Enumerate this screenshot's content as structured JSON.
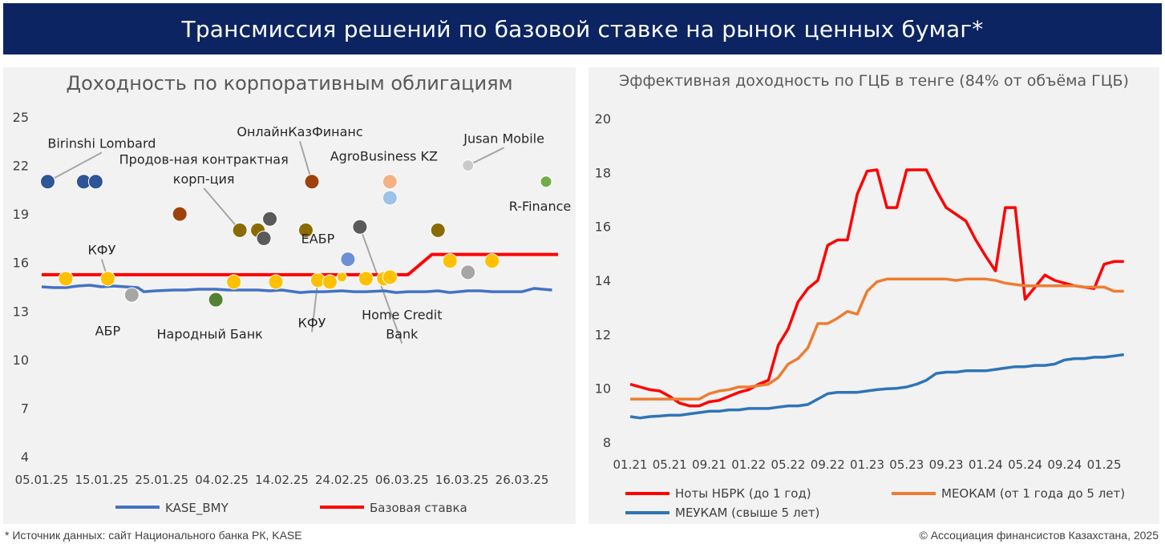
{
  "banner": {
    "title": "Трансмиссия решений по базовой ставке на рынок ценных бумаг*"
  },
  "footer": {
    "source": "* Источник данных: сайт Национального банка РК, KASE",
    "copyright": "© Ассоциация финансистов Казахстана, 2025"
  },
  "chart_data": [
    {
      "type": "scatter",
      "title": "Доходность по корпоративным облигациям",
      "ylim": [
        4,
        25
      ],
      "yticks": [
        4,
        7,
        10,
        13,
        16,
        19,
        22,
        25
      ],
      "xlim": [
        "2025-01-05",
        "2025-04-01"
      ],
      "xticks": [
        "05.01.25",
        "15.01.25",
        "25.01.25",
        "04.02.25",
        "14.02.25",
        "24.02.25",
        "06.03.25",
        "16.03.25",
        "26.03.25"
      ],
      "xtick_dates": [
        "2025-01-05",
        "2025-01-15",
        "2025-01-25",
        "2025-02-04",
        "2025-02-14",
        "2025-02-24",
        "2025-03-06",
        "2025-03-16",
        "2025-03-26"
      ],
      "grid": false,
      "legend_position": "bottom",
      "series": [
        {
          "name": "KASE_BMY",
          "kind": "line",
          "color": "#4472c4",
          "x": [
            "2025-01-05",
            "2025-01-07",
            "2025-01-09",
            "2025-01-11",
            "2025-01-13",
            "2025-01-15",
            "2025-01-17",
            "2025-01-19",
            "2025-01-21",
            "2025-01-22",
            "2025-01-24",
            "2025-01-27",
            "2025-01-29",
            "2025-01-31",
            "2025-02-03",
            "2025-02-05",
            "2025-02-07",
            "2025-02-10",
            "2025-02-12",
            "2025-02-14",
            "2025-02-17",
            "2025-02-19",
            "2025-02-21",
            "2025-02-24",
            "2025-02-26",
            "2025-02-28",
            "2025-03-03",
            "2025-03-05",
            "2025-03-07",
            "2025-03-10",
            "2025-03-12",
            "2025-03-14",
            "2025-03-17",
            "2025-03-19",
            "2025-03-21",
            "2025-03-24",
            "2025-03-26",
            "2025-03-28",
            "2025-03-31"
          ],
          "y": [
            14.5,
            14.45,
            14.45,
            14.55,
            14.6,
            14.5,
            14.55,
            14.5,
            14.45,
            14.2,
            14.25,
            14.3,
            14.3,
            14.35,
            14.35,
            14.3,
            14.3,
            14.3,
            14.25,
            14.3,
            14.15,
            14.2,
            14.2,
            14.25,
            14.2,
            14.2,
            14.25,
            14.15,
            14.2,
            14.2,
            14.25,
            14.15,
            14.25,
            14.25,
            14.2,
            14.2,
            14.2,
            14.4,
            14.3
          ]
        },
        {
          "name": "Базовая ставка",
          "kind": "step",
          "color": "#ff0000",
          "x": [
            "2025-01-05",
            "2025-03-07",
            "2025-03-11",
            "2025-04-01"
          ],
          "y": [
            15.25,
            15.25,
            16.5,
            16.5
          ]
        },
        {
          "name": "",
          "kind": "points",
          "points": [
            {
              "x": "2025-01-06",
              "y": 21.0,
              "color": "#2e5597",
              "r": 9
            },
            {
              "x": "2025-01-12",
              "y": 21.0,
              "color": "#2e5597",
              "r": 9
            },
            {
              "x": "2025-01-14",
              "y": 21.0,
              "color": "#2e5597",
              "r": 9
            },
            {
              "x": "2025-01-09",
              "y": 15.0,
              "color": "#ffc000",
              "r": 9
            },
            {
              "x": "2025-01-16",
              "y": 15.0,
              "color": "#ffc000",
              "r": 9
            },
            {
              "x": "2025-01-20",
              "y": 14.0,
              "color": "#a6a6a6",
              "r": 9
            },
            {
              "x": "2025-01-28",
              "y": 19.0,
              "color": "#a0410d",
              "r": 9
            },
            {
              "x": "2025-02-03",
              "y": 13.7,
              "color": "#548235",
              "r": 9
            },
            {
              "x": "2025-02-06",
              "y": 14.8,
              "color": "#ffc000",
              "r": 9
            },
            {
              "x": "2025-02-07",
              "y": 18.0,
              "color": "#8b6b00",
              "r": 9
            },
            {
              "x": "2025-02-10",
              "y": 18.0,
              "color": "#8b6b00",
              "r": 9
            },
            {
              "x": "2025-02-11",
              "y": 17.5,
              "color": "#5a5a5a",
              "r": 9
            },
            {
              "x": "2025-02-12",
              "y": 18.7,
              "color": "#5a5a5a",
              "r": 9
            },
            {
              "x": "2025-02-13",
              "y": 14.8,
              "color": "#ffc000",
              "r": 9
            },
            {
              "x": "2025-02-18",
              "y": 18.0,
              "color": "#8b6b00",
              "r": 9
            },
            {
              "x": "2025-02-19",
              "y": 21.0,
              "color": "#a0410d",
              "r": 9
            },
            {
              "x": "2025-02-20",
              "y": 14.9,
              "color": "#ffc000",
              "r": 9
            },
            {
              "x": "2025-02-22",
              "y": 14.8,
              "color": "#ffc000",
              "r": 9
            },
            {
              "x": "2025-02-24",
              "y": 15.1,
              "color": "#ffc000",
              "r": 6
            },
            {
              "x": "2025-02-25",
              "y": 16.2,
              "color": "#6d8fd6",
              "r": 9
            },
            {
              "x": "2025-02-27",
              "y": 18.2,
              "color": "#5a5a5a",
              "r": 9
            },
            {
              "x": "2025-02-28",
              "y": 15.0,
              "color": "#ffc000",
              "r": 9
            },
            {
              "x": "2025-03-03",
              "y": 15.0,
              "color": "#ffc000",
              "r": 9
            },
            {
              "x": "2025-03-04",
              "y": 15.1,
              "color": "#ffc000",
              "r": 9
            },
            {
              "x": "2025-03-04",
              "y": 21.0,
              "color": "#f4b183",
              "r": 9
            },
            {
              "x": "2025-03-04",
              "y": 20.0,
              "color": "#9dc3e6",
              "r": 9
            },
            {
              "x": "2025-03-12",
              "y": 18.0,
              "color": "#8b6b00",
              "r": 9
            },
            {
              "x": "2025-03-14",
              "y": 16.1,
              "color": "#ffc000",
              "r": 9
            },
            {
              "x": "2025-03-17",
              "y": 15.4,
              "color": "#a6a6a6",
              "r": 9
            },
            {
              "x": "2025-03-17",
              "y": 22.0,
              "color": "#c9c9c9",
              "r": 7
            },
            {
              "x": "2025-03-21",
              "y": 16.1,
              "color": "#ffc000",
              "r": 9
            },
            {
              "x": "2025-03-30",
              "y": 21.0,
              "color": "#70ad47",
              "r": 7
            }
          ]
        }
      ],
      "annotations": [
        {
          "text": "Birinshi Lombard",
          "x": "2025-01-15",
          "y": 23.1,
          "leader_to": {
            "x": "2025-01-06",
            "y": 21.0
          }
        },
        {
          "text": "Продов-ная контрактная",
          "x": "2025-02-01",
          "y": 22.1
        },
        {
          "text": "корп-ция",
          "x": "2025-02-01",
          "y": 20.9,
          "leader_to": {
            "x": "2025-02-07",
            "y": 18.0
          }
        },
        {
          "text": "ОнлайнКазФинанс",
          "x": "2025-02-17",
          "y": 23.8,
          "leader_to": {
            "x": "2025-02-19",
            "y": 21.0
          }
        },
        {
          "text": "AgroBusiness KZ",
          "x": "2025-03-03",
          "y": 22.3
        },
        {
          "text": "Jusan Mobile",
          "x": "2025-03-23",
          "y": 23.4,
          "leader_to": {
            "x": "2025-03-17",
            "y": 22.0
          }
        },
        {
          "text": "R-Finance",
          "x": "2025-03-29",
          "y": 19.2
        },
        {
          "text": "КФУ",
          "x": "2025-01-15",
          "y": 16.5,
          "leader_to": {
            "x": "2025-01-16",
            "y": 15.0
          }
        },
        {
          "text": "АБР",
          "x": "2025-01-16",
          "y": 11.5
        },
        {
          "text": "Народный Банк",
          "x": "2025-02-02",
          "y": 11.3
        },
        {
          "text": "ЕАБР",
          "x": "2025-02-20",
          "y": 17.2
        },
        {
          "text": "КФУ",
          "x": "2025-02-19",
          "y": 12.0,
          "leader_to": {
            "x": "2025-02-20",
            "y": 14.9
          }
        },
        {
          "text": "Home Credit",
          "x": "2025-03-06",
          "y": 12.5
        },
        {
          "text": "Bank",
          "x": "2025-03-06",
          "y": 11.3,
          "leader_to": {
            "x": "2025-02-27",
            "y": 18.2
          }
        }
      ]
    },
    {
      "type": "line",
      "title": "Эффективная доходность по ГЦБ в тенге (84% от объёма ГЦБ)",
      "ylim": [
        8,
        20
      ],
      "yticks": [
        8,
        10,
        12,
        14,
        16,
        18,
        20
      ],
      "xlim": [
        0,
        51
      ],
      "xticks": [
        "01.21",
        "05.21",
        "09.21",
        "01.22",
        "05.22",
        "09.22",
        "01.23",
        "05.23",
        "09.23",
        "01.24",
        "05.24",
        "09.24",
        "01.25"
      ],
      "grid": false,
      "legend_position": "bottom",
      "series": [
        {
          "name": "Ноты НБРК (до 1 год)",
          "color": "#ff0000",
          "values": [
            10.15,
            10.05,
            9.95,
            9.9,
            9.7,
            9.45,
            9.35,
            9.35,
            9.5,
            9.55,
            9.7,
            9.85,
            9.95,
            10.15,
            10.3,
            11.6,
            12.2,
            13.2,
            13.7,
            14.0,
            15.3,
            15.5,
            15.5,
            17.2,
            18.05,
            18.1,
            16.7,
            16.7,
            18.1,
            18.1,
            18.1,
            17.35,
            16.7,
            16.45,
            16.2,
            15.5,
            14.9,
            14.35,
            16.7,
            16.7,
            13.3,
            13.75,
            14.2,
            14.0,
            13.9,
            13.8,
            13.75,
            13.7,
            14.6,
            14.7,
            14.7
          ]
        },
        {
          "name": "МЕОКАМ (от 1 года до 5 лет)",
          "color": "#ed7d31",
          "values": [
            9.6,
            9.6,
            9.6,
            9.6,
            9.6,
            9.6,
            9.6,
            9.6,
            9.8,
            9.9,
            9.95,
            10.05,
            10.05,
            10.1,
            10.15,
            10.4,
            10.9,
            11.1,
            11.5,
            12.4,
            12.4,
            12.6,
            12.85,
            12.75,
            13.6,
            13.95,
            14.05,
            14.05,
            14.05,
            14.05,
            14.05,
            14.05,
            14.05,
            14.0,
            14.05,
            14.05,
            14.05,
            14.0,
            13.9,
            13.85,
            13.8,
            13.8,
            13.8,
            13.8,
            13.8,
            13.8,
            13.75,
            13.75,
            13.75,
            13.6,
            13.6
          ]
        },
        {
          "name": "МЕУКАМ (свыше 5 лет)",
          "color": "#2e75b6",
          "values": [
            8.95,
            8.9,
            8.95,
            8.97,
            9.0,
            9.0,
            9.05,
            9.1,
            9.15,
            9.15,
            9.2,
            9.2,
            9.25,
            9.25,
            9.25,
            9.3,
            9.35,
            9.35,
            9.4,
            9.6,
            9.8,
            9.85,
            9.85,
            9.85,
            9.9,
            9.95,
            9.98,
            10.0,
            10.05,
            10.15,
            10.3,
            10.55,
            10.6,
            10.6,
            10.65,
            10.65,
            10.65,
            10.7,
            10.75,
            10.8,
            10.8,
            10.85,
            10.85,
            10.9,
            11.05,
            11.1,
            11.1,
            11.15,
            11.15,
            11.2,
            11.25
          ]
        }
      ]
    }
  ]
}
